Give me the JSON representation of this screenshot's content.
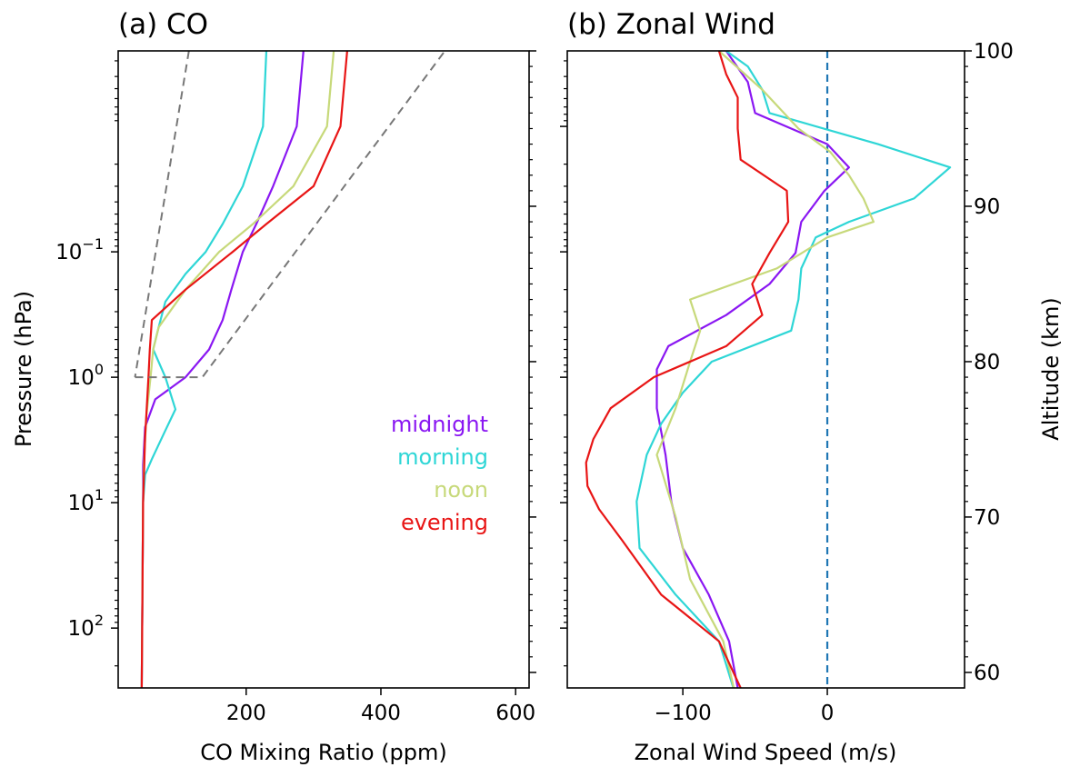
{
  "chart_data": [
    {
      "panel": "a",
      "type": "line",
      "title": "(a) CO",
      "xlabel": "CO Mixing Ratio (ppm)",
      "ylabel": "Pressure (hPa)",
      "xlim": [
        10,
        620
      ],
      "ylim": [
        300,
        0.0025
      ],
      "y_scale": "log",
      "x_ticks": [
        200,
        400,
        600
      ],
      "y_ticks": [
        {
          "value": 0.1,
          "base": "10",
          "exp": "−1"
        },
        {
          "value": 1,
          "base": "10",
          "exp": "0"
        },
        {
          "value": 10,
          "base": "10",
          "exp": "1"
        },
        {
          "value": 100,
          "base": "10",
          "exp": "2"
        }
      ],
      "grid": false,
      "legend": {
        "placement": "lower-right",
        "entries": [
          "midnight",
          "morning",
          "noon",
          "evening"
        ]
      },
      "series": [
        {
          "name": "midnight",
          "color": "#8a17f2",
          "y": [
            0.0025,
            0.01,
            0.03,
            0.06,
            0.1,
            0.2,
            0.35,
            0.6,
            1.0,
            1.5,
            2.5,
            5,
            10,
            50,
            300
          ],
          "x": [
            285,
            275,
            240,
            215,
            195,
            178,
            165,
            145,
            110,
            65,
            50,
            47,
            47,
            46,
            45
          ]
        },
        {
          "name": "morning",
          "color": "#2ed6d6",
          "y": [
            0.0025,
            0.01,
            0.03,
            0.06,
            0.1,
            0.15,
            0.25,
            0.4,
            0.6,
            1.0,
            1.8,
            2.8,
            4.5,
            6,
            10,
            50,
            300
          ],
          "x": [
            230,
            225,
            195,
            165,
            140,
            110,
            80,
            70,
            62,
            80,
            95,
            78,
            60,
            50,
            47,
            46,
            45
          ]
        },
        {
          "name": "noon",
          "color": "#c7d97a",
          "y": [
            0.0025,
            0.01,
            0.03,
            0.06,
            0.1,
            0.2,
            0.4,
            0.6,
            1.0,
            2.0,
            5,
            10,
            50,
            300
          ],
          "x": [
            330,
            320,
            270,
            210,
            160,
            110,
            70,
            62,
            58,
            52,
            48,
            47,
            46,
            45
          ]
        },
        {
          "name": "evening",
          "color": "#e81515",
          "y": [
            0.0025,
            0.01,
            0.03,
            0.06,
            0.1,
            0.2,
            0.35,
            0.6,
            1.0,
            3,
            10,
            50,
            300
          ],
          "x": [
            350,
            340,
            300,
            230,
            180,
            110,
            60,
            57,
            55,
            50,
            47,
            46,
            45
          ]
        },
        {
          "name": "",
          "color": "#777777",
          "dashed": true,
          "y": [
            0.0025,
            1.0
          ],
          "x": [
            115,
            35
          ]
        },
        {
          "name": "",
          "color": "#777777",
          "dashed": true,
          "y": [
            1.0,
            1.0,
            0.0025
          ],
          "x": [
            35,
            135,
            495
          ]
        }
      ]
    },
    {
      "panel": "b",
      "type": "line",
      "title": "(b) Zonal Wind",
      "xlabel": "Zonal Wind Speed (m/s)",
      "ylabel": "Altitude (km)",
      "xlim": [
        -180,
        95
      ],
      "ylim": [
        59,
        100
      ],
      "x_ticks": [
        {
          "value": -100,
          "label": "−100"
        },
        {
          "value": 0,
          "label": "0"
        }
      ],
      "y_ticks": [
        60,
        70,
        80,
        90,
        100
      ],
      "grid": false,
      "zero_line": {
        "x": 0,
        "color": "#1f77b4",
        "dashed": true
      },
      "series": [
        {
          "name": "midnight",
          "color": "#8a17f2",
          "alt": [
            59,
            62,
            65,
            68,
            71,
            74,
            77,
            79.5,
            81,
            83,
            85,
            87,
            89,
            91,
            92.5,
            94,
            96,
            98,
            100
          ],
          "u": [
            -62,
            -68,
            -82,
            -100,
            -108,
            -112,
            -118,
            -118,
            -110,
            -70,
            -40,
            -22,
            -18,
            -2,
            15,
            0,
            -50,
            -55,
            -70
          ]
        },
        {
          "name": "morning",
          "color": "#2ed6d6",
          "alt": [
            59,
            62,
            65,
            68,
            71,
            74,
            76,
            78,
            80,
            82,
            84,
            86,
            88,
            89,
            90.5,
            92.5,
            94,
            96,
            97.5,
            99,
            100
          ],
          "u": [
            -65,
            -75,
            -105,
            -130,
            -132,
            -125,
            -115,
            -100,
            -80,
            -25,
            -20,
            -18,
            -8,
            15,
            60,
            85,
            35,
            -40,
            -45,
            -55,
            -70
          ]
        },
        {
          "name": "noon",
          "color": "#c7d97a",
          "alt": [
            57,
            62,
            66,
            70,
            74,
            77,
            80,
            82,
            84,
            86,
            88,
            89,
            90.5,
            92,
            93.5,
            95,
            97.5,
            100
          ],
          "u": [
            -60,
            -72,
            -95,
            -105,
            -118,
            -105,
            -95,
            -88,
            -95,
            -35,
            0,
            32,
            25,
            15,
            2,
            -20,
            -45,
            -75
          ]
        },
        {
          "name": "evening",
          "color": "#e81515",
          "alt": [
            59,
            62,
            65,
            68.5,
            70.5,
            72,
            73.5,
            75,
            77,
            79,
            81,
            83,
            85,
            87,
            89,
            91,
            93,
            95,
            97,
            98.5,
            100
          ],
          "u": [
            -60,
            -75,
            -115,
            -142,
            -158,
            -166,
            -167,
            -162,
            -150,
            -120,
            -70,
            -45,
            -52,
            -40,
            -27,
            -28,
            -60,
            -62,
            -62,
            -70,
            -75
          ]
        }
      ]
    }
  ]
}
